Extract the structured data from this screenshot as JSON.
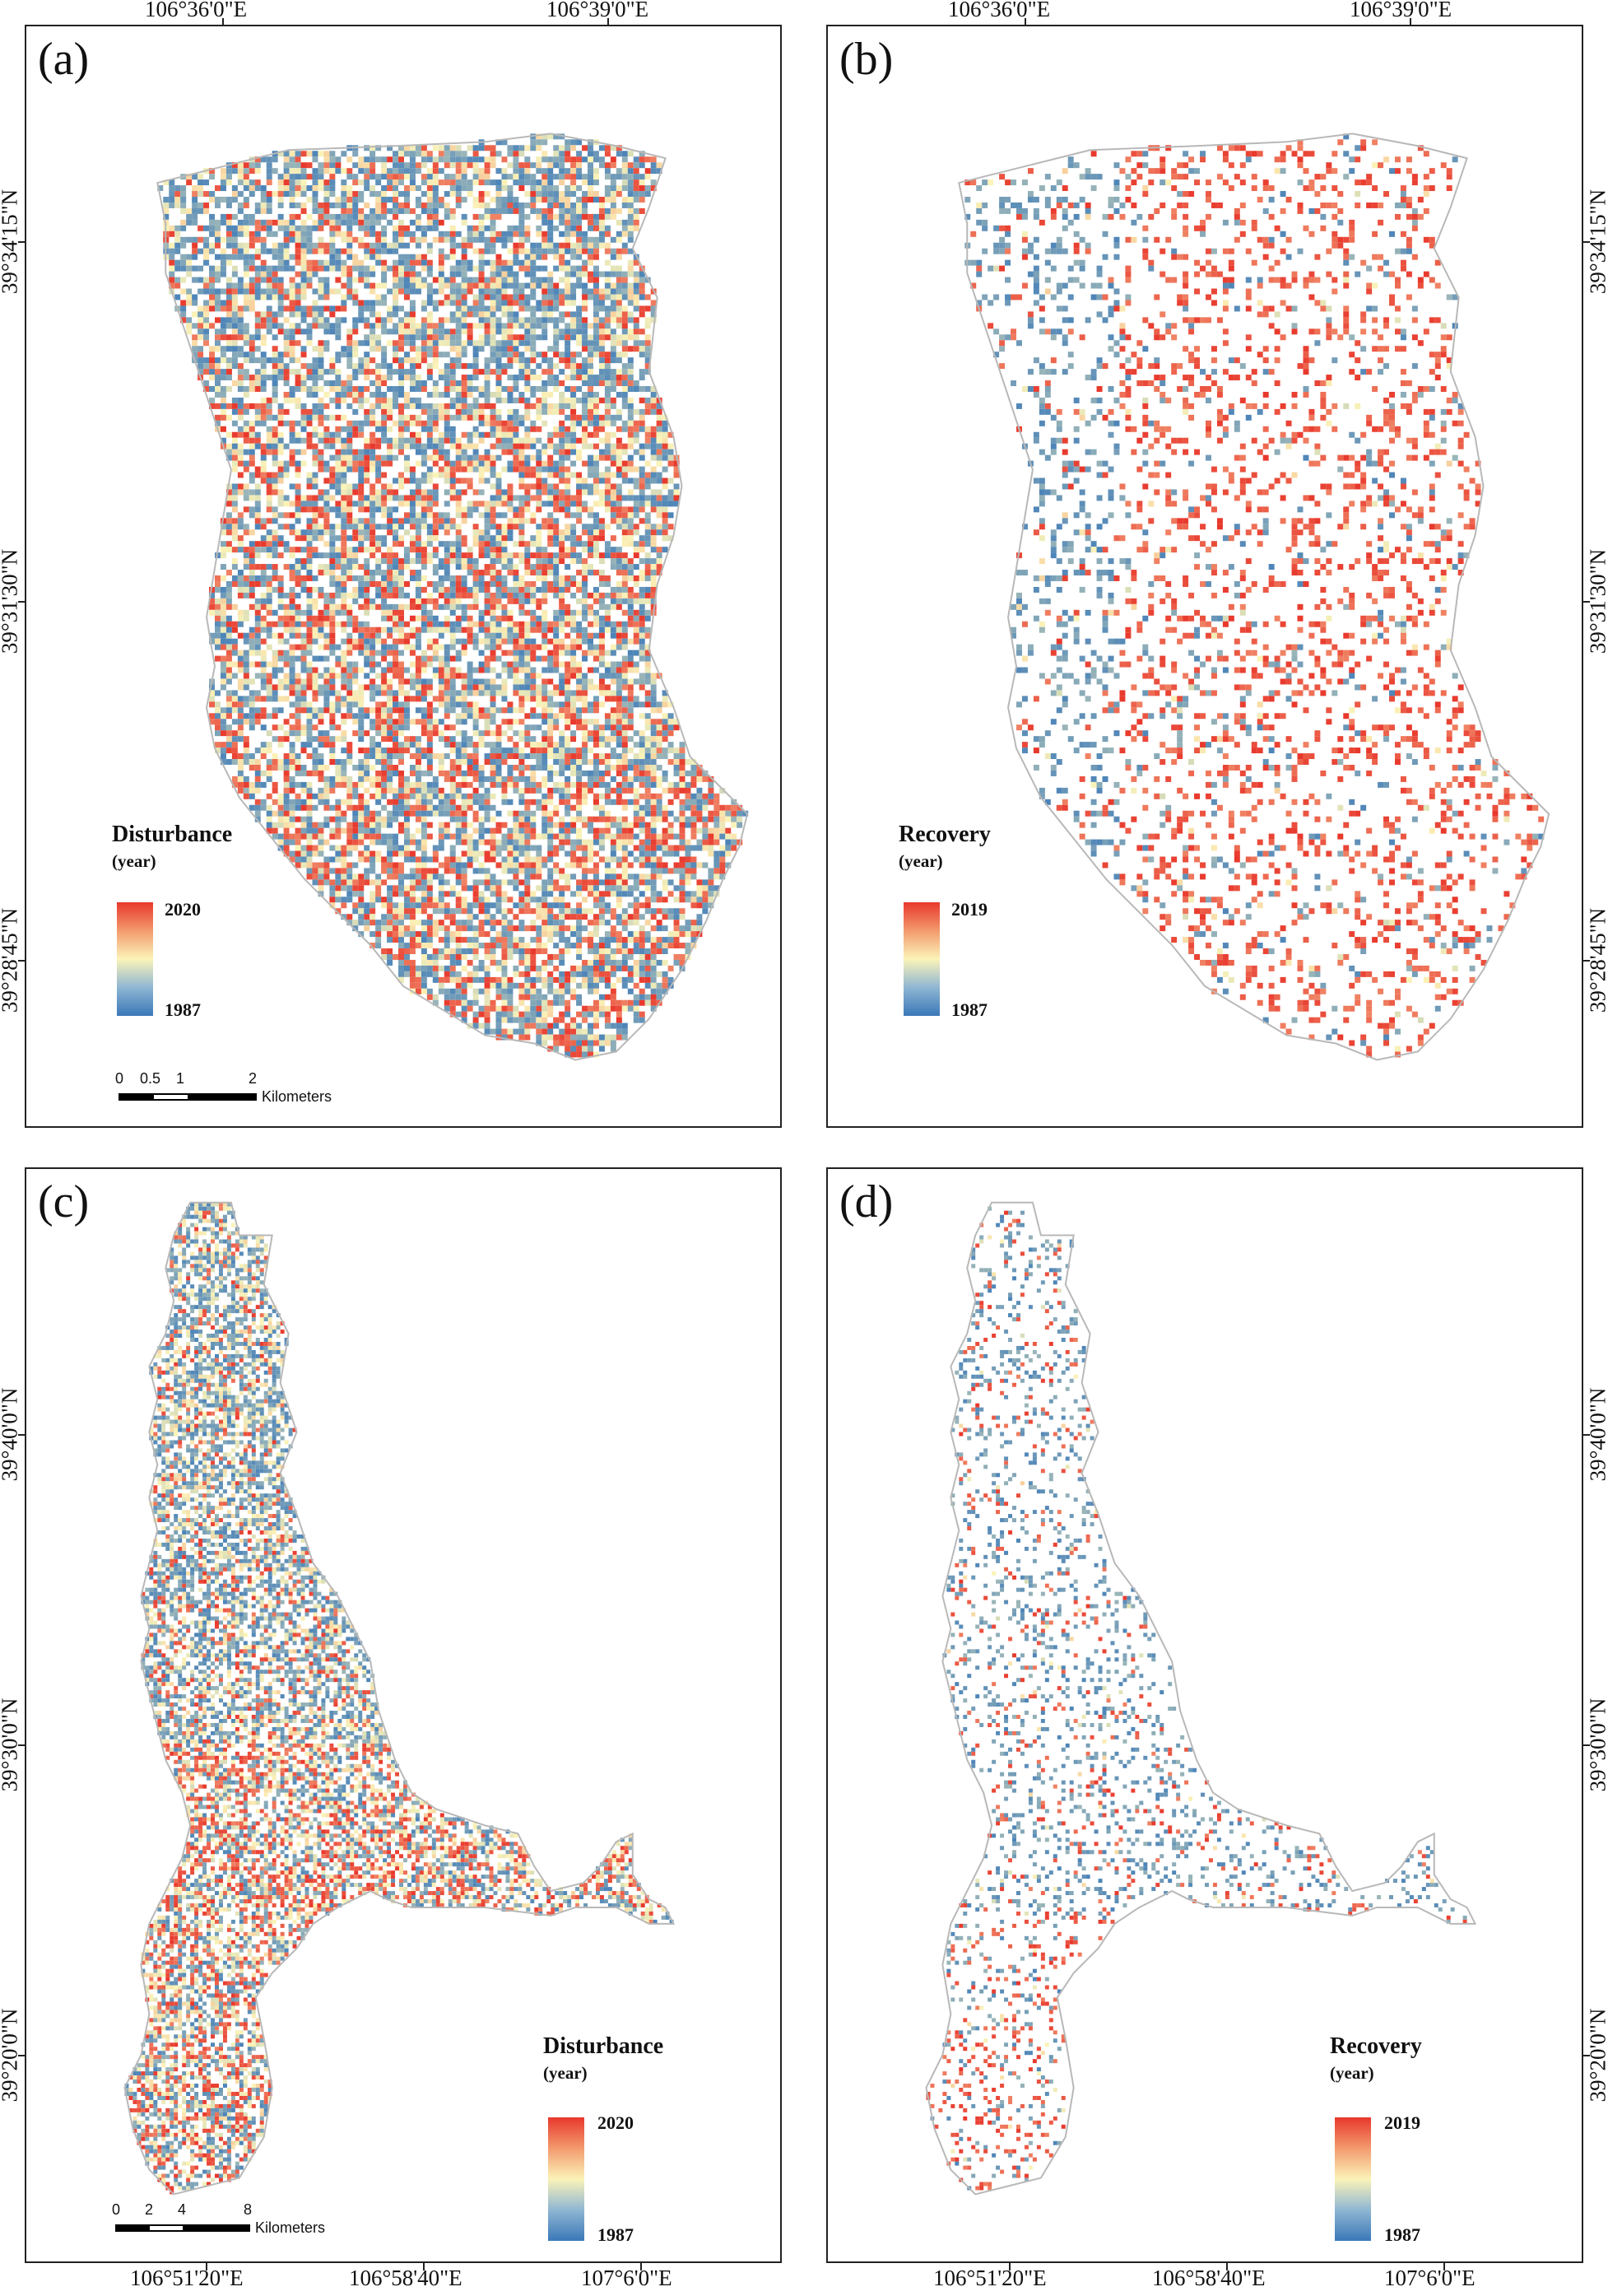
{
  "panels": [
    {
      "id": "a",
      "label": "(a)",
      "top_ticks": [
        "106°36'0\"E",
        "106°39'0\"E"
      ],
      "left_ticks": [
        "39°34'15\"N",
        "39°31'30\"N",
        "39°28'45\"N"
      ],
      "legend": {
        "title": "Disturbance",
        "unit": "(year)",
        "max": "2020",
        "min": "1987"
      },
      "scalebar": {
        "labels": [
          "0",
          "0.5",
          "1",
          "2"
        ],
        "unit": "Kilometers"
      }
    },
    {
      "id": "b",
      "label": "(b)",
      "top_ticks": [
        "106°36'0\"E",
        "106°39'0\"E"
      ],
      "right_ticks": [
        "39°34'15\"N",
        "39°31'30\"N",
        "39°28'45\"N"
      ],
      "legend": {
        "title": "Recovery",
        "unit": "(year)",
        "max": "2019",
        "min": "1987"
      }
    },
    {
      "id": "c",
      "label": "(c)",
      "bottom_ticks": [
        "106°51'20\"E",
        "106°58'40\"E",
        "107°6'0\"E"
      ],
      "left_ticks": [
        "39°40'0\"N",
        "39°30'0\"N",
        "39°20'0\"N"
      ],
      "legend": {
        "title": "Disturbance",
        "unit": "(year)",
        "max": "2020",
        "min": "1987"
      },
      "scalebar": {
        "labels": [
          "0",
          "2",
          "4",
          "8"
        ],
        "unit": "Kilometers"
      }
    },
    {
      "id": "d",
      "label": "(d)",
      "bottom_ticks": [
        "106°51'20\"E",
        "106°58'40\"E",
        "107°6'0\"E"
      ],
      "right_ticks": [
        "39°40'0\"N",
        "39°30'0\"N",
        "39°20'0\"N"
      ],
      "legend": {
        "title": "Recovery",
        "unit": "(year)",
        "max": "2019",
        "min": "1987"
      }
    }
  ],
  "colors": {
    "ramp_high": "#e8382c",
    "ramp_mid": "#fbf3b8",
    "ramp_low": "#3a78b8",
    "boundary": "#b8b8b8",
    "frame": "#222222"
  }
}
